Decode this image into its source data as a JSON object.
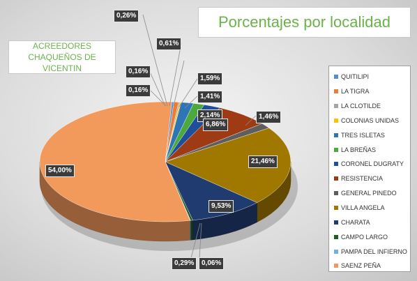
{
  "title": "Porcentajes por localidad",
  "subtitle": "ACREEDORES CHAQUEÑOS DE VICENTIN",
  "chart_data": {
    "type": "pie",
    "title": "Porcentajes por localidad",
    "subtitle": "ACREEDORES CHAQUEÑOS DE VICENTIN",
    "legend_position": "right",
    "three_d": true,
    "slices": [
      {
        "name": "QUITILIPI",
        "value": 0.26,
        "label": "0,26%",
        "color": "#4f8fd8"
      },
      {
        "name": "LA TIGRA",
        "value": 0.61,
        "label": "0,61%",
        "color": "#ee7d31"
      },
      {
        "name": "LA CLOTILDE",
        "value": 0.16,
        "label": "0,16%",
        "color": "#a5a5a5"
      },
      {
        "name": "COLONIAS UNIDAS",
        "value": 0.16,
        "label": "0,16%",
        "color": "#ffc000"
      },
      {
        "name": "TRES ISLETAS",
        "value": 1.59,
        "label": "1,59%",
        "color": "#2e75b6"
      },
      {
        "name": "LA BREÑAS",
        "value": 1.41,
        "label": "1,41%",
        "color": "#4caa3c"
      },
      {
        "name": "CORONEL DUGRATY",
        "value": 2.14,
        "label": "2,14%",
        "color": "#1f4e9a"
      },
      {
        "name": "RESISTENCIA",
        "value": 6.86,
        "label": "6,86%",
        "color": "#9e3b14"
      },
      {
        "name": "GENERAL PINEDO",
        "value": 1.46,
        "label": "1,46%",
        "color": "#5e5e5e"
      },
      {
        "name": "VILLA ANGELA",
        "value": 21.46,
        "label": "21,46%",
        "color": "#a07800"
      },
      {
        "name": "CHARATA",
        "value": 9.53,
        "label": "9,53%",
        "color": "#203b70"
      },
      {
        "name": "CAMPO LARGO",
        "value": 0.29,
        "label": "0,29%",
        "color": "#1f5c1f"
      },
      {
        "name": "PAMPA DEL INFIERNO",
        "value": 0.06,
        "label": "0,06%",
        "color": "#6fb0e6"
      },
      {
        "name": "SAENZ PEÑA",
        "value": 54.0,
        "label": "54,00%",
        "color": "#f29a5c"
      }
    ]
  }
}
